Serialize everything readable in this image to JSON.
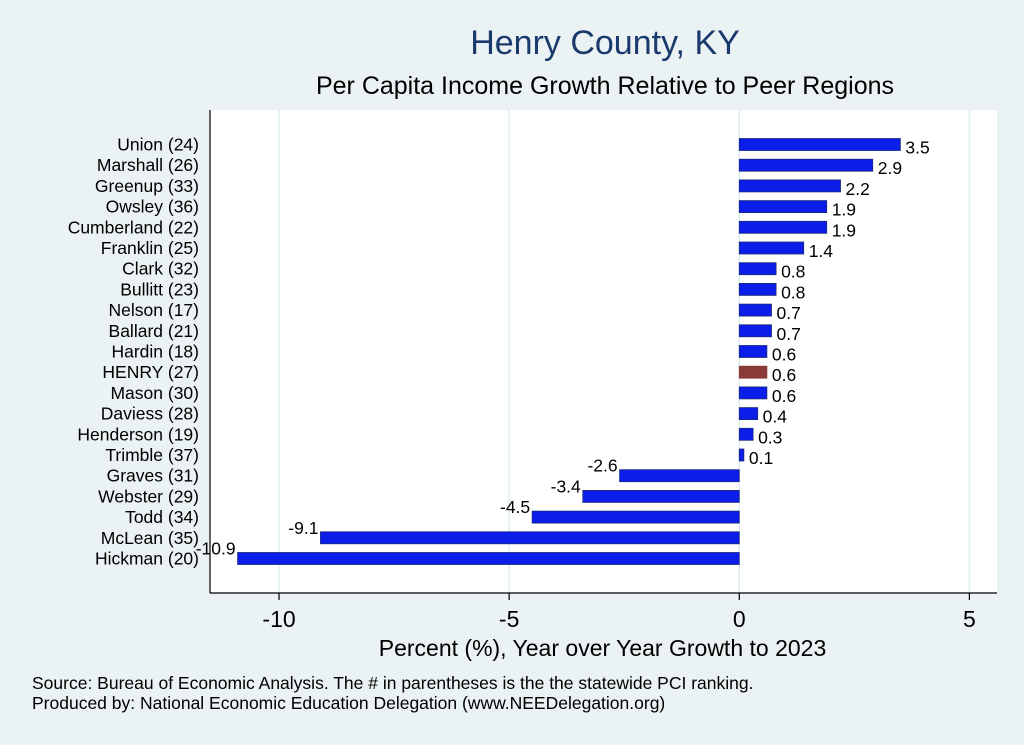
{
  "title": "Henry County, KY",
  "subtitle": "Per Capita Income Growth Relative to Peer Regions",
  "source_note": "Source: Bureau of Economic Analysis. The # in parentheses is the the statewide PCI ranking.",
  "produced_note": "Produced by: National Economic Education Delegation (www.NEEDelegation.org)",
  "colors": {
    "bar": "#0b1de8",
    "highlight": "#8b3a3a",
    "plot_background": "#ffffff",
    "page_background": "#eaf2f3",
    "grid": "#e0eef0",
    "title": "#1a3a6e"
  },
  "chart_data": {
    "type": "bar",
    "orientation": "horizontal",
    "title": "Henry County, KY",
    "subtitle": "Per Capita Income Growth Relative to Peer Regions",
    "xlabel": "Percent (%), Year over Year Growth to 2023",
    "ylabel": "",
    "xlim": [
      -11.5,
      5.6
    ],
    "xticks": [
      -10,
      -5,
      0,
      5
    ],
    "xtick_labels": [
      "-10",
      "-5",
      "0",
      "5"
    ],
    "grid": true,
    "categories": [
      "Union (24)",
      "Marshall (26)",
      "Greenup (33)",
      "Owsley (36)",
      "Cumberland (22)",
      "Franklin (25)",
      "Clark (32)",
      "Bullitt (23)",
      "Nelson (17)",
      "Ballard (21)",
      "Hardin (18)",
      "HENRY (27)",
      "Mason (30)",
      "Daviess (28)",
      "Henderson (19)",
      "Trimble (37)",
      "Graves (31)",
      "Webster (29)",
      "Todd (34)",
      "McLean (35)",
      "Hickman (20)"
    ],
    "values": [
      3.5,
      2.9,
      2.2,
      1.9,
      1.9,
      1.4,
      0.8,
      0.8,
      0.7,
      0.7,
      0.6,
      0.6,
      0.6,
      0.4,
      0.3,
      0.1,
      -2.6,
      -3.4,
      -4.5,
      -9.1,
      -10.9
    ],
    "value_labels": [
      "3.5",
      "2.9",
      "2.2",
      "1.9",
      "1.9",
      "1.4",
      "0.8",
      "0.8",
      "0.7",
      "0.7",
      "0.6",
      "0.6",
      "0.6",
      "0.4",
      "0.3",
      "0.1",
      "-2.6",
      "-3.4",
      "-4.5",
      "-9.1",
      "-10.9"
    ],
    "highlight_category": "HENRY (27)"
  }
}
